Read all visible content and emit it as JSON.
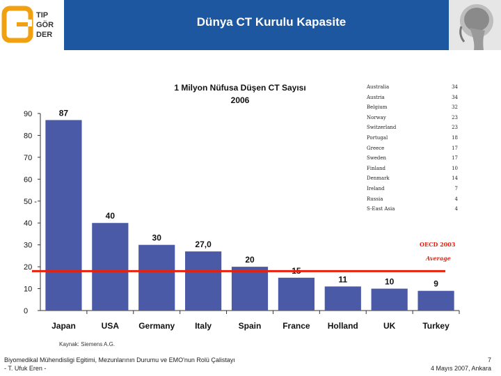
{
  "slide": {
    "title": "Dünya CT Kurulu Kapasite",
    "logo_lines": [
      "TIP",
      "GÖR",
      "DER"
    ],
    "source": "Kaynak: Siemens A.G.",
    "footer_left_1": "Biyomedikal Mühendisligi Egitimi, Mezunlarının Durumu ve EMO'nun Rolü Çalistayı",
    "footer_left_2": "- T. Ufuk Eren  -",
    "page_number": "7",
    "footer_date": "4 Mayıs 2007, Ankara"
  },
  "chart_data": {
    "type": "bar",
    "title": "1 Milyon Nüfusa Düşen CT Sayısı",
    "subtitle": "2006",
    "categories": [
      "Japan",
      "USA",
      "Germany",
      "Italy",
      "Spain",
      "France",
      "Holland",
      "UK",
      "Turkey"
    ],
    "values": [
      87,
      40,
      30,
      27,
      20,
      15,
      11,
      10,
      9
    ],
    "value_labels": [
      "87",
      "40",
      "30",
      "27,0",
      "20",
      "15",
      "11",
      "10",
      "9"
    ],
    "yticks": [
      "0",
      "10",
      "20",
      "30",
      "40",
      "50 -",
      "60",
      "70",
      "80",
      "90"
    ],
    "ylim": [
      0,
      90
    ],
    "bar_color": "#4a5aa6",
    "reference_line": {
      "value": 18,
      "color": "#e8200c"
    },
    "side_table": [
      {
        "country": "Australia",
        "value": "34"
      },
      {
        "country": "Austria",
        "value": "34"
      },
      {
        "country": "Belgium",
        "value": "32"
      },
      {
        "country": "Norway",
        "value": "23"
      },
      {
        "country": "Switzerland",
        "value": "23"
      },
      {
        "country": "Portugal",
        "value": "18"
      },
      {
        "country": "Greece",
        "value": "17"
      },
      {
        "country": "Sweden",
        "value": "17"
      },
      {
        "country": "Finland",
        "value": "10"
      },
      {
        "country": "Denmark",
        "value": "14"
      },
      {
        "country": "Ireland",
        "value": "7"
      },
      {
        "country": "Russia",
        "value": "4"
      },
      {
        "country": "S-East Asia",
        "value": "4"
      }
    ],
    "oecd_label": "OECD 2003",
    "average_label": "Average"
  }
}
